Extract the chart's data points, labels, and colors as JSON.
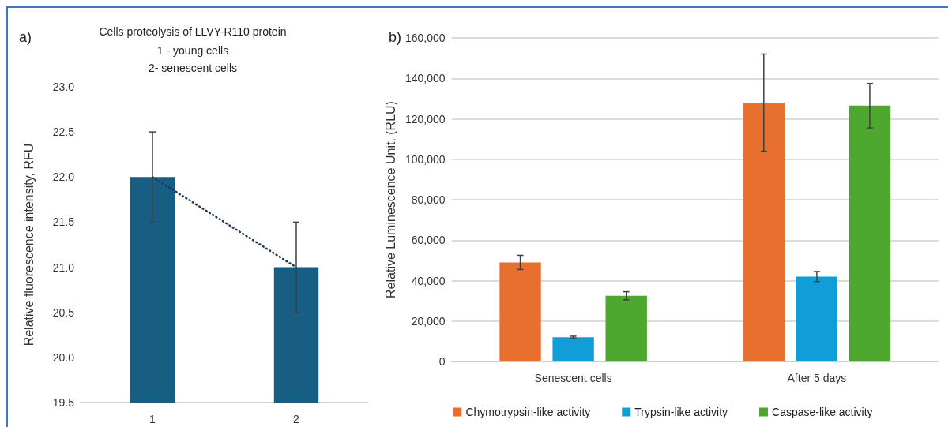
{
  "chart_data": [
    {
      "type": "bar",
      "title": "Cells proteolysis of LLVY-R110 protein",
      "subtitle": "1 - young cells\n2- senescent cells",
      "annotations": [
        "a)"
      ],
      "ylabel": "Relative fluorescence intensity, RFU",
      "categories": [
        "1",
        "2"
      ],
      "series": [
        {
          "color": "#175e82",
          "values": [
            22.0,
            21.0
          ],
          "errors": [
            0.5,
            0.5
          ]
        },
        {
          "type": "line",
          "color": "#1f3b5a",
          "values": [
            22.0,
            21.0
          ],
          "line_style": "dotted",
          "marker": "none"
        }
      ],
      "ylim": [
        19.5,
        23.0
      ],
      "yticks": [
        19.5,
        {
          "value": 20,
          "label": "20.0"
        },
        20.5,
        {
          "value": 21,
          "label": "21.0"
        },
        21.5,
        {
          "value": 22,
          "label": "22.0"
        },
        22.5,
        {
          "value": 23,
          "label": "23.0"
        }
      ],
      "grid": false,
      "legend": false
    },
    {
      "type": "bar",
      "annotations": [
        "b)"
      ],
      "ylabel": "Relative Luminescence Unit, (RLU)",
      "categories": [
        "Senescent cells",
        "After 5 days"
      ],
      "series": [
        {
          "name": "Chymotrypsin-like activity",
          "color": "#e8702f",
          "values": [
            49000,
            128000
          ],
          "errors": [
            3500,
            24000
          ]
        },
        {
          "name": "Trypsin-like activity",
          "color": "#109dd8",
          "values": [
            12000,
            42000
          ],
          "errors": [
            500,
            2500
          ]
        },
        {
          "name": "Caspase-like activity",
          "color": "#4ea72e",
          "values": [
            32500,
            126500
          ],
          "errors": [
            2000,
            11000
          ]
        }
      ],
      "ylim": [
        0,
        160000
      ],
      "yticks": [
        0,
        {
          "value": 20000,
          "label": "20,000"
        },
        {
          "value": 40000,
          "label": "40,000"
        },
        {
          "value": 60000,
          "label": "60,000"
        },
        {
          "value": 80000,
          "label": "80,000"
        },
        {
          "value": 100000,
          "label": "100,000"
        },
        {
          "value": 120000,
          "label": "120,000"
        },
        {
          "value": 140000,
          "label": "140,000"
        },
        {
          "value": 160000,
          "label": "160,000"
        }
      ],
      "grid": "y",
      "legend": "bottom"
    }
  ]
}
